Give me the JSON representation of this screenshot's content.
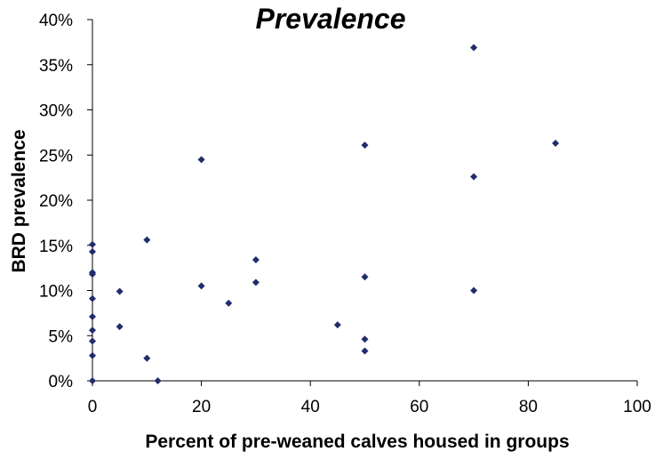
{
  "chart_data": {
    "type": "scatter",
    "title": "Prevalence",
    "xlabel": "Percent of pre-weaned calves housed in groups",
    "ylabel": "BRD prevalence",
    "xlim": [
      0,
      100
    ],
    "ylim": [
      0,
      40
    ],
    "x_ticks": [
      "0",
      "20",
      "40",
      "60",
      "80",
      "100"
    ],
    "y_ticks": [
      "0%",
      "5%",
      "10%",
      "15%",
      "20%",
      "25%",
      "30%",
      "35%",
      "40%"
    ],
    "grid": false,
    "legend": "none",
    "marker": "diamond",
    "colors": {
      "marker": "#1f2d6b",
      "axis": "#000000"
    },
    "points": [
      {
        "x": 0,
        "y": 15.1
      },
      {
        "x": 0,
        "y": 14.3
      },
      {
        "x": 0,
        "y": 12.0
      },
      {
        "x": 0,
        "y": 11.8
      },
      {
        "x": 0,
        "y": 9.1
      },
      {
        "x": 0,
        "y": 7.1
      },
      {
        "x": 0,
        "y": 5.6
      },
      {
        "x": 0,
        "y": 4.4
      },
      {
        "x": 0,
        "y": 2.8
      },
      {
        "x": 0,
        "y": 0
      },
      {
        "x": 5,
        "y": 9.9
      },
      {
        "x": 5,
        "y": 6.0
      },
      {
        "x": 10,
        "y": 15.6
      },
      {
        "x": 10,
        "y": 2.5
      },
      {
        "x": 12,
        "y": 0
      },
      {
        "x": 20,
        "y": 24.5
      },
      {
        "x": 20,
        "y": 10.5
      },
      {
        "x": 25,
        "y": 8.6
      },
      {
        "x": 30,
        "y": 13.4
      },
      {
        "x": 30,
        "y": 10.9
      },
      {
        "x": 45,
        "y": 6.2
      },
      {
        "x": 50,
        "y": 26.1
      },
      {
        "x": 50,
        "y": 11.5
      },
      {
        "x": 50,
        "y": 4.6
      },
      {
        "x": 50,
        "y": 3.3
      },
      {
        "x": 70,
        "y": 36.9
      },
      {
        "x": 70,
        "y": 22.6
      },
      {
        "x": 70,
        "y": 10.0
      },
      {
        "x": 85,
        "y": 26.3
      }
    ]
  }
}
